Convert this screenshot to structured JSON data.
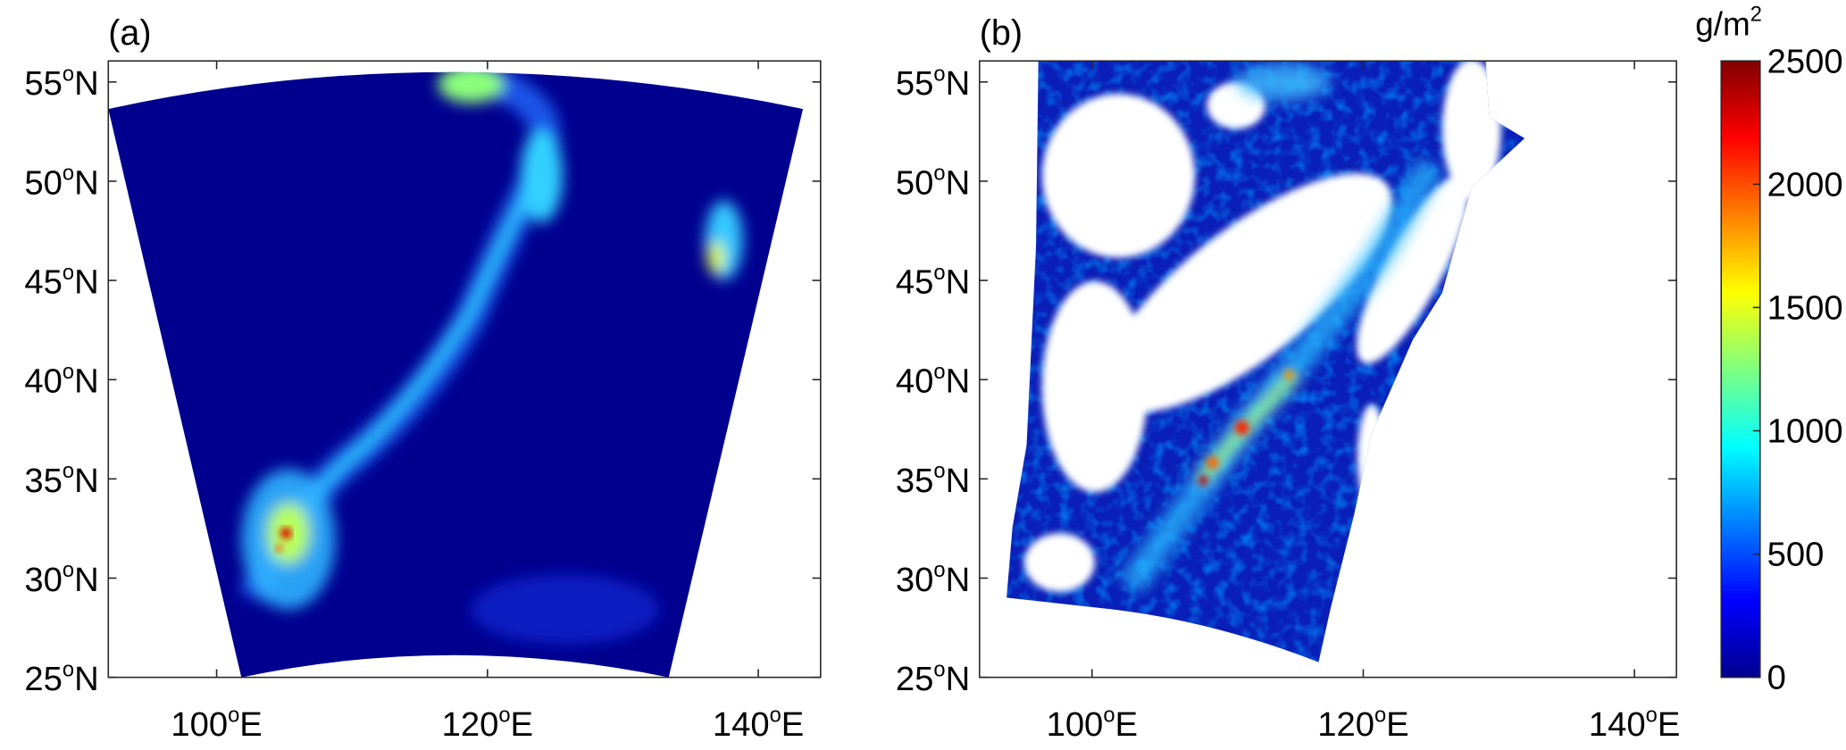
{
  "panels": [
    {
      "label": "(a)",
      "xlim": [
        92,
        144.6
      ],
      "ylim": [
        25,
        56.06
      ],
      "xticks": [
        {
          "value": 100,
          "label": "100",
          "degree": "o",
          "hemisphere": "E"
        },
        {
          "value": 120,
          "label": "120",
          "degree": "o",
          "hemisphere": "E"
        },
        {
          "value": 140,
          "label": "140",
          "degree": "o",
          "hemisphere": "E"
        }
      ],
      "yticks": [
        {
          "value": 25,
          "label": "25",
          "degree": "o",
          "hemisphere": "N"
        },
        {
          "value": 30,
          "label": "30",
          "degree": "o",
          "hemisphere": "N"
        },
        {
          "value": 35,
          "label": "35",
          "degree": "o",
          "hemisphere": "N"
        },
        {
          "value": 40,
          "label": "40",
          "degree": "o",
          "hemisphere": "N"
        },
        {
          "value": 45,
          "label": "45",
          "degree": "o",
          "hemisphere": "N"
        },
        {
          "value": 50,
          "label": "50",
          "degree": "o",
          "hemisphere": "N"
        },
        {
          "value": 55,
          "label": "55",
          "degree": "o",
          "hemisphere": "N"
        }
      ]
    },
    {
      "label": "(b)",
      "xlim": [
        91.7,
        143.1
      ],
      "ylim": [
        25,
        56.06
      ],
      "xticks": [
        {
          "value": 100,
          "label": "100",
          "degree": "o",
          "hemisphere": "E"
        },
        {
          "value": 120,
          "label": "120",
          "degree": "o",
          "hemisphere": "E"
        },
        {
          "value": 140,
          "label": "140",
          "degree": "o",
          "hemisphere": "E"
        }
      ],
      "yticks": [
        {
          "value": 25,
          "label": "25",
          "degree": "o",
          "hemisphere": "N"
        },
        {
          "value": 30,
          "label": "30",
          "degree": "o",
          "hemisphere": "N"
        },
        {
          "value": 35,
          "label": "35",
          "degree": "o",
          "hemisphere": "N"
        },
        {
          "value": 40,
          "label": "40",
          "degree": "o",
          "hemisphere": "N"
        },
        {
          "value": 45,
          "label": "45",
          "degree": "o",
          "hemisphere": "N"
        },
        {
          "value": 50,
          "label": "50",
          "degree": "o",
          "hemisphere": "N"
        },
        {
          "value": 55,
          "label": "55",
          "degree": "o",
          "hemisphere": "N"
        }
      ]
    }
  ],
  "colorbar": {
    "unit": "g/m",
    "unit_exponent": "2",
    "colormap": "jet",
    "lim": [
      0,
      2500
    ],
    "ticks": [
      0,
      500,
      1000,
      1500,
      2000,
      2500
    ]
  }
}
